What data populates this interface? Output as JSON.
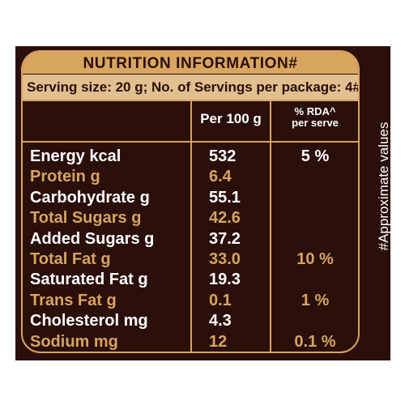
{
  "label": {
    "title": "NUTRITION INFORMATION#",
    "serving": "Serving size: 20 g; No. of Servings per package: 4#",
    "col_per100": "Per 100 g",
    "col_rda_line1": "% RDA^",
    "col_rda_line2": "per serve",
    "side_note": "#Approximate values"
  },
  "rows": [
    {
      "label": "Energy kcal",
      "value": "532",
      "rda": "5 %",
      "style": "white"
    },
    {
      "label": "Protein g",
      "value": "6.4",
      "rda": "",
      "style": "gold"
    },
    {
      "label": "Carbohydrate g",
      "value": "55.1",
      "rda": "",
      "style": "white"
    },
    {
      "label": "Total Sugars g",
      "value": "42.6",
      "rda": "",
      "style": "gold"
    },
    {
      "label": "Added Sugars g",
      "value": "37.2",
      "rda": "",
      "style": "white"
    },
    {
      "label": "Total Fat g",
      "value": "33.0",
      "rda": "10 %",
      "style": "gold"
    },
    {
      "label": "Saturated Fat g",
      "value": "19.3",
      "rda": "",
      "style": "white"
    },
    {
      "label": "Trans Fat g",
      "value": "0.1",
      "rda": "1 %",
      "style": "gold"
    },
    {
      "label": "Cholesterol mg",
      "value": "4.3",
      "rda": "",
      "style": "white"
    },
    {
      "label": "Sodium mg",
      "value": "12",
      "rda": "0.1 %",
      "style": "gold"
    }
  ],
  "colors": {
    "background": "#2a0f0b",
    "gold": "#d7a45f",
    "text": "#ffffff"
  }
}
